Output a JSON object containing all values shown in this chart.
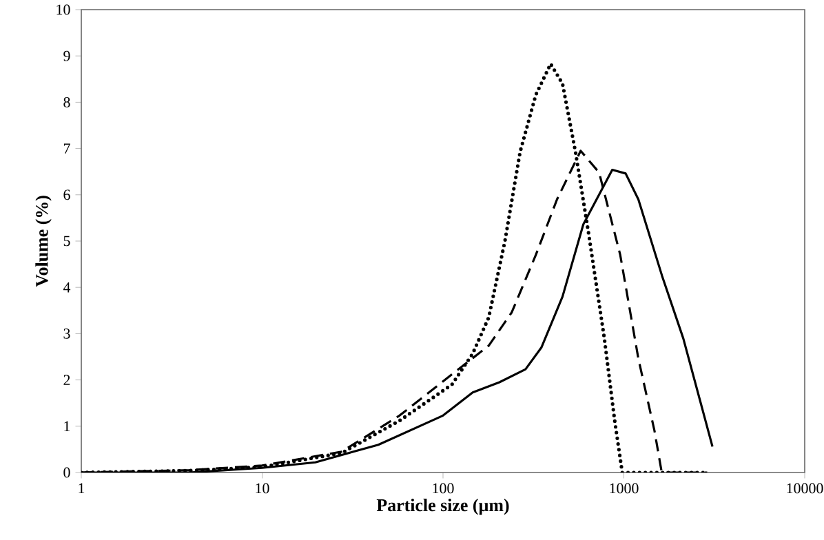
{
  "chart_data": {
    "type": "line",
    "xlabel": "Particle size (µm)",
    "ylabel": "Volume (%)",
    "log": "x",
    "xlim": [
      1,
      10000
    ],
    "xticks": [
      1,
      10,
      100,
      1000,
      10000
    ],
    "ylim": [
      0,
      10
    ],
    "yticks": [
      0,
      1,
      2,
      3,
      4,
      5,
      6,
      7,
      8,
      9,
      10
    ],
    "grid": false,
    "marker": "none",
    "series": [
      {
        "color": "#000000",
        "line_style": "solid",
        "x": [
          1,
          3.95,
          10,
          19.7,
          43.9,
          100,
          146,
          205,
          286,
          350,
          458,
          597,
          863,
          1023,
          1203,
          1626,
          2130,
          3090
        ],
        "values": [
          0,
          0,
          0.1,
          0.22,
          0.6,
          1.23,
          1.73,
          1.95,
          2.23,
          2.7,
          3.8,
          5.36,
          6.54,
          6.46,
          5.9,
          4.25,
          2.9,
          0.56
        ]
      },
      {
        "color": "#000000",
        "line_style": "dashed",
        "x": [
          1,
          3.95,
          10,
          27.5,
          57.5,
          112,
          179,
          240,
          326,
          427,
          577,
          730,
          955,
          1203,
          1477,
          1620,
          2890
        ],
        "values": [
          0,
          0.05,
          0.15,
          0.45,
          1.23,
          2.12,
          2.74,
          3.46,
          4.7,
          5.9,
          6.95,
          6.48,
          4.7,
          2.46,
          0.9,
          0,
          0
        ]
      },
      {
        "color": "#000000",
        "line_style": "dotted",
        "x": [
          1,
          3.95,
          10,
          27.5,
          57.5,
          112,
          146,
          179,
          220,
          267,
          326,
          394,
          458,
          540,
          640,
          780,
          890,
          980,
          2890
        ],
        "values": [
          0,
          0.04,
          0.12,
          0.42,
          1.12,
          1.9,
          2.57,
          3.35,
          5.0,
          6.93,
          8.16,
          8.83,
          8.4,
          6.93,
          5.14,
          2.9,
          1.12,
          0,
          0
        ]
      }
    ]
  }
}
